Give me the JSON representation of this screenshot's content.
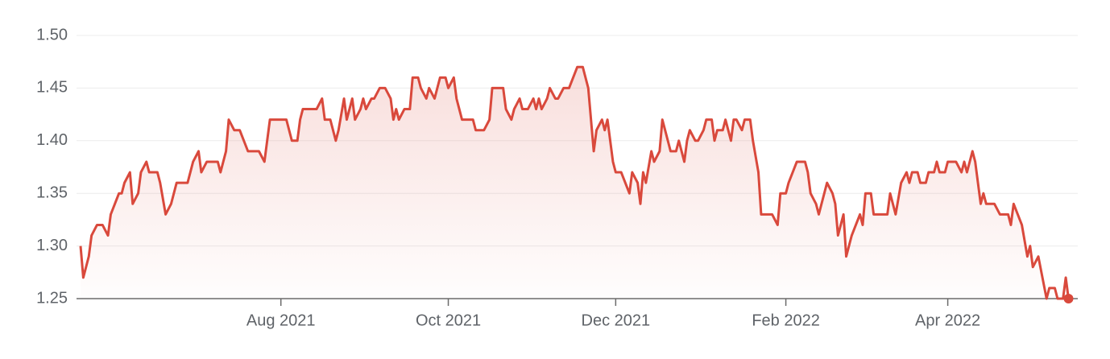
{
  "chart_data": {
    "type": "line",
    "x": [
      0,
      1,
      3,
      4,
      6,
      8,
      10,
      11,
      14,
      15,
      16,
      18,
      19,
      21,
      22,
      24,
      25,
      28,
      29,
      31,
      33,
      35,
      39,
      41,
      43,
      44,
      46,
      50,
      51,
      53,
      54,
      56,
      58,
      61,
      65,
      67,
      69,
      75,
      77,
      79,
      80,
      81,
      86,
      88,
      89,
      91,
      93,
      94,
      96,
      97,
      99,
      100,
      102,
      103,
      104,
      106,
      107,
      109,
      111,
      113,
      114,
      115,
      116,
      118,
      120,
      121,
      123,
      124,
      126,
      127,
      129,
      130,
      131,
      133,
      134,
      136,
      137,
      138,
      139,
      143,
      144,
      147,
      149,
      150,
      154,
      155,
      157,
      158,
      160,
      161,
      163,
      165,
      166,
      167,
      168,
      170,
      171,
      173,
      174,
      176,
      178,
      181,
      183,
      185,
      187,
      188,
      190,
      191,
      192,
      194,
      195,
      197,
      200,
      201,
      203,
      204,
      205,
      206,
      208,
      209,
      211,
      212,
      214,
      215,
      217,
      218,
      220,
      221,
      222,
      224,
      225,
      227,
      228,
      230,
      231,
      232,
      234,
      235,
      237,
      238,
      239,
      241,
      242,
      244,
      245,
      247,
      248,
      252,
      254,
      255,
      257,
      258,
      261,
      264,
      265,
      266,
      268,
      269,
      271,
      272,
      274,
      275,
      276,
      278,
      279,
      281,
      284,
      285,
      286,
      288,
      289,
      294,
      295,
      297,
      299,
      301,
      302,
      303,
      305,
      306,
      308,
      309,
      311,
      312,
      313,
      315,
      316,
      319,
      321,
      322,
      323,
      325,
      326,
      328,
      329,
      330,
      333,
      335,
      338,
      339,
      340,
      343,
      345,
      346,
      347,
      349,
      352,
      353,
      355,
      356,
      358,
      359,
      360
    ],
    "series": [
      {
        "color": "#d9493c",
        "values": [
          1.3,
          1.27,
          1.29,
          1.31,
          1.32,
          1.32,
          1.31,
          1.33,
          1.35,
          1.35,
          1.36,
          1.37,
          1.34,
          1.35,
          1.37,
          1.38,
          1.37,
          1.37,
          1.36,
          1.33,
          1.34,
          1.36,
          1.36,
          1.38,
          1.39,
          1.37,
          1.38,
          1.38,
          1.37,
          1.39,
          1.42,
          1.41,
          1.41,
          1.39,
          1.39,
          1.38,
          1.42,
          1.42,
          1.4,
          1.4,
          1.42,
          1.43,
          1.43,
          1.44,
          1.42,
          1.42,
          1.4,
          1.41,
          1.44,
          1.42,
          1.44,
          1.42,
          1.43,
          1.44,
          1.43,
          1.44,
          1.44,
          1.45,
          1.45,
          1.44,
          1.42,
          1.43,
          1.42,
          1.43,
          1.43,
          1.46,
          1.46,
          1.45,
          1.44,
          1.45,
          1.44,
          1.45,
          1.46,
          1.46,
          1.45,
          1.46,
          1.44,
          1.43,
          1.42,
          1.42,
          1.41,
          1.41,
          1.42,
          1.45,
          1.45,
          1.43,
          1.42,
          1.43,
          1.44,
          1.43,
          1.43,
          1.44,
          1.43,
          1.44,
          1.43,
          1.44,
          1.45,
          1.44,
          1.44,
          1.45,
          1.45,
          1.47,
          1.47,
          1.45,
          1.39,
          1.41,
          1.42,
          1.41,
          1.42,
          1.38,
          1.37,
          1.37,
          1.35,
          1.37,
          1.36,
          1.34,
          1.37,
          1.36,
          1.39,
          1.38,
          1.39,
          1.42,
          1.4,
          1.39,
          1.39,
          1.4,
          1.38,
          1.4,
          1.41,
          1.4,
          1.4,
          1.41,
          1.42,
          1.42,
          1.4,
          1.41,
          1.41,
          1.42,
          1.4,
          1.42,
          1.42,
          1.41,
          1.42,
          1.42,
          1.4,
          1.37,
          1.33,
          1.33,
          1.32,
          1.35,
          1.35,
          1.36,
          1.38,
          1.38,
          1.37,
          1.35,
          1.34,
          1.33,
          1.35,
          1.36,
          1.35,
          1.34,
          1.31,
          1.33,
          1.29,
          1.31,
          1.33,
          1.32,
          1.35,
          1.35,
          1.33,
          1.33,
          1.35,
          1.33,
          1.36,
          1.37,
          1.36,
          1.37,
          1.37,
          1.36,
          1.36,
          1.37,
          1.37,
          1.38,
          1.37,
          1.37,
          1.38,
          1.38,
          1.37,
          1.38,
          1.37,
          1.39,
          1.38,
          1.34,
          1.35,
          1.34,
          1.34,
          1.33,
          1.33,
          1.32,
          1.34,
          1.32,
          1.29,
          1.3,
          1.28,
          1.29,
          1.25,
          1.26,
          1.26,
          1.25,
          1.25,
          1.27,
          1.25
        ]
      }
    ],
    "xlim": [
      0,
      360
    ],
    "xticks": [
      {
        "value": 73,
        "label": "Aug 2021"
      },
      {
        "value": 134,
        "label": "Oct 2021"
      },
      {
        "value": 195,
        "label": "Dec 2021"
      },
      {
        "value": 257,
        "label": "Feb 2022"
      },
      {
        "value": 316,
        "label": "Apr 2022"
      }
    ],
    "ylim": [
      1.25,
      1.5
    ],
    "yticks": [
      {
        "value": 1.5,
        "label": "1.50"
      },
      1.45,
      {
        "value": 1.4,
        "label": "1.40"
      },
      1.35,
      {
        "value": 1.3,
        "label": "1.30"
      },
      1.25
    ],
    "grid": true
  }
}
